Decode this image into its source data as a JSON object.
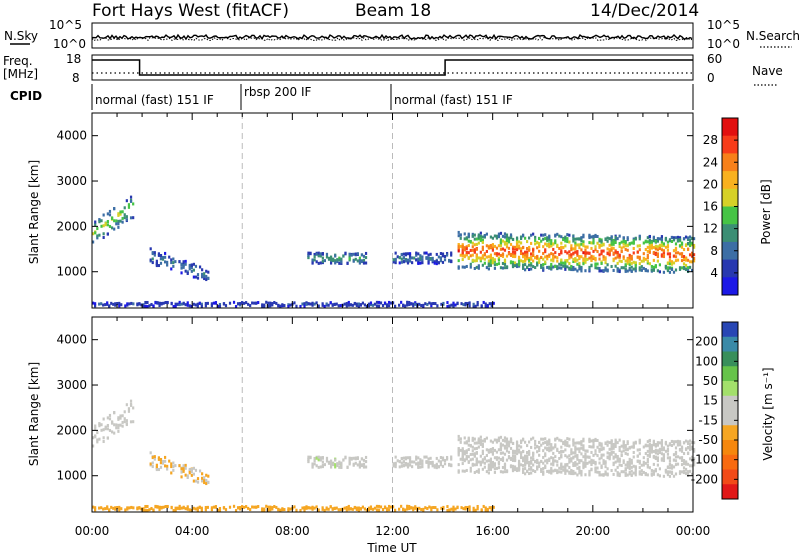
{
  "header": {
    "station": "Fort Hays West (fitACF)",
    "beam": "Beam 18",
    "date": "14/Dec/2014"
  },
  "noise_panel": {
    "left_label": "N.Sky",
    "right_label": "N.Search",
    "tick_top": "10^5",
    "tick_bottom": "10^0"
  },
  "freq_panel": {
    "left_label_1": "Freq.",
    "left_label_2": "[MHz]",
    "right_label": "Nave",
    "left_ticks": [
      "18",
      "8"
    ],
    "right_ticks": [
      "60",
      "0"
    ]
  },
  "cpid": {
    "label": "CPID",
    "segments": [
      {
        "name": "normal (fast) 151 IF",
        "start_hour": 0,
        "end_hour": 6
      },
      {
        "name": "rbsp 200 IF",
        "start_hour": 6,
        "end_hour": 12
      },
      {
        "name": "normal (fast) 151 IF",
        "start_hour": 12,
        "end_hour": 24
      }
    ]
  },
  "power_panel": {
    "ylabel": "Slant Range [km]",
    "colorbar_label": "Power [dB]",
    "colorbar_ticks": [
      "28",
      "24",
      "20",
      "16",
      "12",
      "8",
      "4"
    ],
    "colorbar_colors": [
      "#e20f0f",
      "#f73c1a",
      "#f7801a",
      "#f9b11f",
      "#d6d128",
      "#46c445",
      "#3b8e74",
      "#3c6ea5",
      "#2838b0",
      "#1c19e6"
    ]
  },
  "velocity_panel": {
    "ylabel": "Slant Range [km]",
    "colorbar_label": "Velocity [m s⁻¹]",
    "colorbar_ticks": [
      "200",
      "100",
      "50",
      "15",
      "-15",
      "-50",
      "-100",
      "-200"
    ],
    "colorbar_colors": [
      "#2846b4",
      "#3a8aa8",
      "#388f5b",
      "#66c34a",
      "#a3e06b",
      "#c8c8c4",
      "#c8c8c4",
      "#f5a623",
      "#f5870d",
      "#f86a10",
      "#f24a18",
      "#e21818"
    ]
  },
  "xaxis": {
    "label": "Time UT",
    "ticks": [
      "00:00",
      "04:00",
      "08:00",
      "12:00",
      "16:00",
      "20:00",
      "00:00"
    ]
  },
  "chart_data": {
    "type": "heatmap",
    "title": "Fort Hays West (fitACF)  Beam 18  14/Dec/2014",
    "xlabel": "Time UT",
    "ylabel": "Slant Range [km]",
    "xlim_hours": [
      0,
      24
    ],
    "ylim_km": [
      200,
      4500
    ],
    "y_ticks_km": [
      1000,
      2000,
      3000,
      4000
    ],
    "power_db_range": [
      0,
      30
    ],
    "velocity_range": [
      -250,
      250
    ],
    "freq_mhz": [
      {
        "start_hour": 0,
        "end_hour": 1.9,
        "value": 18
      },
      {
        "start_hour": 1.9,
        "end_hour": 14.1,
        "value": 8
      },
      {
        "start_hour": 14.1,
        "end_hour": 24,
        "value": 18
      }
    ],
    "scatter_regions": [
      {
        "start_hour": 0,
        "end_hour": 1.6,
        "range_from_km": [
          1700,
          2000
        ],
        "range_to_km": [
          2300,
          2600
        ],
        "power_db": 12,
        "velocity": 0
      },
      {
        "start_hour": 2.3,
        "end_hour": 4.6,
        "range_from_km": [
          1300,
          1400
        ],
        "range_to_km": [
          900,
          950
        ],
        "power_db": 6,
        "velocity": -40
      },
      {
        "start_hour": 8.6,
        "end_hour": 10.9,
        "range_from_km": [
          1300,
          1300
        ],
        "range_to_km": [
          1300,
          1300
        ],
        "power_db": 9,
        "velocity": 30
      },
      {
        "start_hour": 12,
        "end_hour": 14.3,
        "range_from_km": [
          1300,
          1300
        ],
        "range_to_km": [
          1300,
          1300
        ],
        "power_db": 6,
        "velocity": 0
      },
      {
        "start_hour": 14.6,
        "end_hour": 24,
        "range_from_km": [
          1400,
          1400
        ],
        "range_to_km": [
          1300,
          1300
        ],
        "power_db": 20,
        "velocity": 0
      },
      {
        "start_hour": 0,
        "end_hour": 16,
        "range_from_km": [
          300,
          300
        ],
        "range_to_km": [
          300,
          300
        ],
        "power_db": 3,
        "velocity": -60
      }
    ]
  }
}
